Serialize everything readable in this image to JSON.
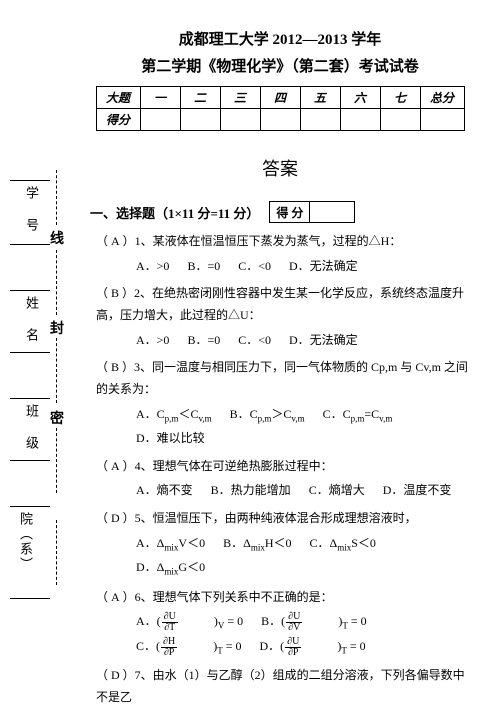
{
  "colors": {
    "bg": "#ffffff",
    "fg": "#000000"
  },
  "header": {
    "line1": "成都理工大学 2012—2013 学年",
    "line2": "第二学期《物理化学》（第二套）考试试卷"
  },
  "score_table": {
    "row1": [
      "大题",
      "一",
      "二",
      "三",
      "四",
      "五",
      "六",
      "七",
      "总分"
    ],
    "row2_label": "得分"
  },
  "answer_heading": "答案",
  "sidebar": {
    "big_chars": [
      "线",
      "封",
      "密"
    ],
    "labels": [
      "学 号",
      "姓 名",
      "班 级",
      "院（系）"
    ]
  },
  "section1": {
    "heading": "一、选择题（1×11 分=11 分）",
    "score_label": "得 分",
    "questions": [
      {
        "ans": "A",
        "num": "1、",
        "text": "某液体在恒温恒压下蒸发为蒸气，过程的△H：",
        "opts": [
          "A．>0",
          "B．=0",
          "C．<0",
          "D．无法确定"
        ]
      },
      {
        "ans": "B",
        "num": "2、",
        "text": "在绝热密闭刚性容器中发生某一化学反应，系统终态温度升高，压力增大，此过程的△U：",
        "opts": [
          "A．>0",
          "B．=0",
          "C．<0",
          "D．无法确定"
        ]
      },
      {
        "ans": "B",
        "num": "3、",
        "text": "同一温度与相同压力下，同一气体物质的 Cp,m 与 Cv,m 之间的关系为：",
        "opts": [
          "A．C<sub>p,m</sub>＜C<sub>v,m</sub>",
          "B．C<sub>p,m</sub>＞C<sub>v,m</sub>",
          "C．C<sub>p,m</sub>=C<sub>v,m</sub>",
          "D．难以比较"
        ]
      },
      {
        "ans": "A",
        "num": "4、",
        "text": "理想气体在可逆绝热膨胀过程中：",
        "opts": [
          "A．熵不变",
          "B．热力能增加",
          "C．熵增大",
          "D．温度不变"
        ]
      },
      {
        "ans": "D",
        "num": "5、",
        "text": "恒温恒压下，由两种纯液体混合形成理想溶液时，",
        "opts": [
          "A．Δ<sub>mix</sub>V＜0",
          "B．Δ<sub>mix</sub>H＜0",
          "C．Δ<sub>mix</sub>S＜0",
          "D．Δ<sub>mix</sub>G＜0"
        ]
      },
      {
        "ans": "A",
        "num": "6、",
        "text": "理想气体下列关系中不正确的是：",
        "opts": [
          "A．(<span class='frac'><span class='n'>∂U</span><span class='d'>∂T</span></span>)<sub>V</sub> = 0",
          "B．(<span class='frac'><span class='n'>∂U</span><span class='d'>∂V</span></span>)<sub>T</sub> = 0",
          "C．(<span class='frac'><span class='n'>∂H</span><span class='d'>∂P</span></span>)<sub>T</sub> = 0",
          "D．(<span class='frac'><span class='n'>∂U</span><span class='d'>∂P</span></span>)<sub>T</sub> = 0"
        ]
      },
      {
        "ans": "D",
        "num": "7、",
        "text": "由水（1）与乙醇（2）组成的二组分溶液，下列各偏导数中不是乙",
        "opts": []
      }
    ]
  }
}
